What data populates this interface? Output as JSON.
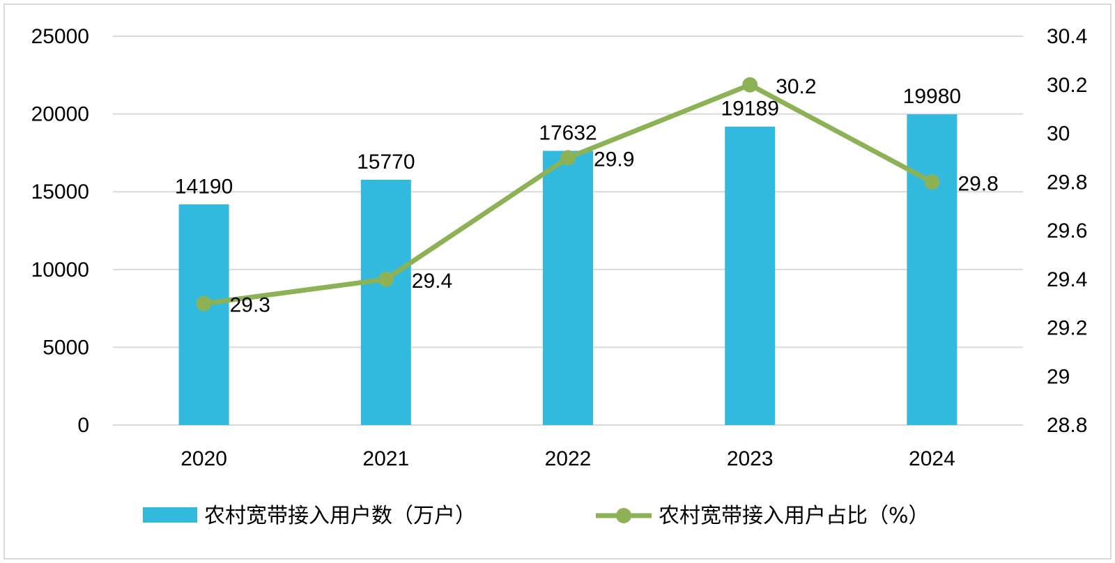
{
  "chart_data": {
    "type": "bar",
    "categories": [
      "2020",
      "2021",
      "2022",
      "2023",
      "2024"
    ],
    "series": [
      {
        "name": "农村宽带接入用户数（万户）",
        "type": "bar",
        "axis": "left",
        "values": [
          14190,
          15770,
          17632,
          19189,
          19980
        ],
        "labels": [
          "14190",
          "15770",
          "17632",
          "19189",
          "19980"
        ],
        "color": "#31BADD"
      },
      {
        "name": "农村宽带接入用户占比（%）",
        "type": "line",
        "axis": "right",
        "values": [
          29.3,
          29.4,
          29.9,
          30.2,
          29.8
        ],
        "labels": [
          "29.3",
          "29.4",
          "29.9",
          "30.2",
          "29.8"
        ],
        "color": "#8DB255"
      }
    ],
    "y_left": {
      "ylim": [
        0,
        25000
      ],
      "ticks": [
        0,
        5000,
        10000,
        15000,
        20000,
        25000
      ],
      "tick_labels": [
        "0",
        "5000",
        "10000",
        "15000",
        "20000",
        "25000"
      ]
    },
    "y_right": {
      "ylim": [
        28.8,
        30.4
      ],
      "ticks": [
        28.8,
        29,
        29.2,
        29.4,
        29.6,
        29.8,
        30,
        30.2,
        30.4
      ],
      "tick_labels": [
        "28.8",
        "29",
        "29.2",
        "29.4",
        "29.6",
        "29.8",
        "30",
        "30.2",
        "30.4"
      ]
    },
    "grid": true,
    "legend_position": "bottom",
    "title": "",
    "xlabel": "",
    "ylabel": ""
  },
  "colors": {
    "bar": "#31BADD",
    "line": "#8DB255",
    "grid": "#D9D9D9",
    "border": "#D9D9D9"
  }
}
